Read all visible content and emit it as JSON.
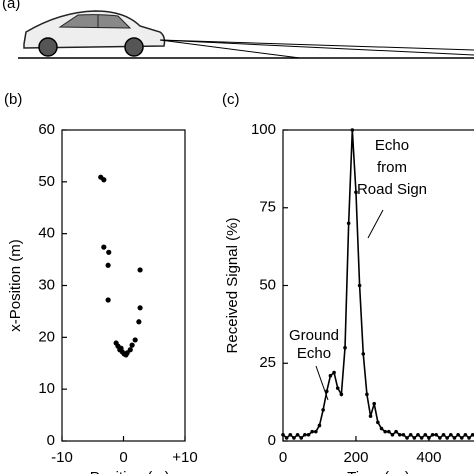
{
  "panel_labels": [
    "(a)",
    "(b)",
    "(c)"
  ],
  "chart_data": [
    {
      "type": "scatter",
      "y_label": "x-Position (m)",
      "x_label": "y-Position (m)",
      "x": [
        -3.7,
        -3.2,
        -3.2,
        -2.4,
        -2.5,
        -2.5,
        2.7,
        2.7,
        2.5,
        -1.2,
        -0.9,
        -0.6,
        -0.2,
        0.1,
        0.6,
        1.1,
        1.4,
        1.9,
        0.4,
        -0.4
      ],
      "values": [
        50.9,
        50.4,
        37.4,
        36.4,
        33.9,
        27.2,
        33.0,
        25.7,
        23.0,
        18.9,
        18.3,
        17.6,
        17.2,
        16.8,
        17.0,
        17.6,
        18.5,
        19.5,
        16.6,
        17.9
      ],
      "color": "#000000",
      "xlim": [
        -10,
        10
      ],
      "xticks": [
        -10,
        0,
        {
          "value": 10,
          "label": "+10"
        }
      ],
      "ylim": [
        0,
        60
      ],
      "yticks": [
        0,
        10,
        20,
        30,
        40,
        50,
        60
      ]
    },
    {
      "type": "line",
      "y_label": "Received Signal (%)",
      "x_label": "Time (ns)",
      "annotations": [
        {
          "text": "Echo from Road Sign"
        },
        {
          "text": "Ground Echo"
        }
      ],
      "x": [
        0,
        10,
        20,
        30,
        40,
        50,
        60,
        70,
        80,
        90,
        100,
        110,
        120,
        130,
        140,
        150,
        160,
        170,
        180,
        190,
        200,
        210,
        220,
        230,
        240,
        250,
        260,
        270,
        280,
        290,
        300,
        310,
        320,
        330,
        340,
        350,
        360,
        370,
        380,
        390,
        400,
        410,
        420,
        430,
        440,
        450,
        460,
        470,
        480,
        490,
        500,
        510,
        520,
        530
      ],
      "values": [
        2,
        1,
        2,
        1,
        2,
        1,
        2,
        2,
        3,
        3,
        5,
        10,
        16,
        21,
        22,
        17,
        15,
        30,
        70,
        100,
        80,
        50,
        28,
        15,
        8,
        12,
        6,
        4,
        3,
        3,
        2,
        3,
        2,
        2,
        1,
        2,
        1,
        2,
        1,
        2,
        1,
        2,
        2,
        1,
        2,
        1,
        2,
        1,
        2,
        1,
        2,
        1,
        2,
        1
      ],
      "color": "#000000",
      "xlim": [
        0,
        540
      ],
      "xticks": [
        0,
        200,
        400
      ],
      "ylim": [
        0,
        100
      ],
      "yticks": [
        0,
        25,
        50,
        75,
        100
      ]
    }
  ]
}
